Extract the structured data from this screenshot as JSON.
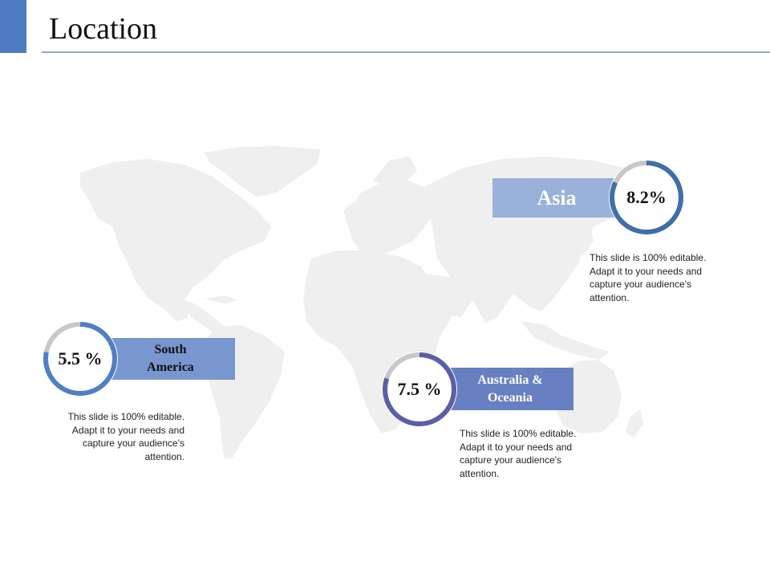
{
  "header": {
    "title": "Location",
    "accent_color": "#4f7cc2"
  },
  "map": {
    "color": "#efefef",
    "icon": "world-map"
  },
  "regions": {
    "asia": {
      "label": "Asia",
      "value_text": "8.2%",
      "percent": 82,
      "ring_color": "#3f6eaa",
      "track_color": "#c8c8c8",
      "box_color": "#9ab1da",
      "description_lines": [
        "This slide is 100% editable.",
        "Adapt it to your needs and",
        "capture your audience's",
        "attention."
      ]
    },
    "south_america": {
      "label_lines": [
        "South",
        "America"
      ],
      "value_text": "5.5 %",
      "percent": 78,
      "ring_color": "#4f80c4",
      "track_color": "#c8c8c8",
      "box_color": "#7896cf",
      "description_lines": [
        "This slide is 100% editable.",
        "Adapt it to your needs and",
        "capture your audience's",
        "attention."
      ]
    },
    "australia": {
      "label_lines": [
        "Australia &",
        "Oceania"
      ],
      "value_text": "7.5 %",
      "percent": 80,
      "ring_color": "#5a5fa8",
      "track_color": "#c8c8c8",
      "box_color": "#6680c2",
      "description_lines": [
        "This slide is 100% editable.",
        "Adapt it to your needs and",
        "capture your audience's",
        "attention."
      ]
    }
  }
}
